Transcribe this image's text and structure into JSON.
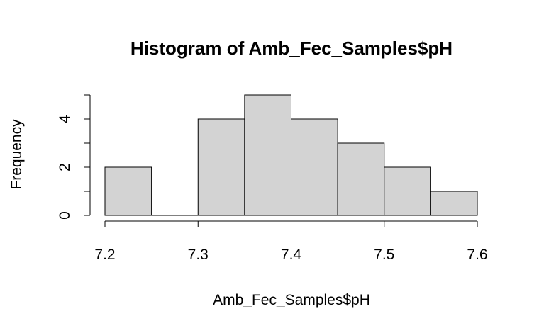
{
  "chart_data": {
    "type": "bar",
    "title": "Histogram of Amb_Fec_Samples$pH",
    "xlabel": "Amb_Fec_Samples$pH",
    "ylabel": "Frequency",
    "bins": [
      {
        "start": 7.2,
        "end": 7.25,
        "count": 2
      },
      {
        "start": 7.25,
        "end": 7.3,
        "count": 0
      },
      {
        "start": 7.3,
        "end": 7.35,
        "count": 4
      },
      {
        "start": 7.35,
        "end": 7.4,
        "count": 5
      },
      {
        "start": 7.4,
        "end": 7.45,
        "count": 4
      },
      {
        "start": 7.45,
        "end": 7.5,
        "count": 3
      },
      {
        "start": 7.5,
        "end": 7.55,
        "count": 2
      },
      {
        "start": 7.55,
        "end": 7.6,
        "count": 1
      }
    ],
    "xlim": [
      7.2,
      7.6
    ],
    "ylim": [
      0,
      5
    ],
    "x_ticks": [
      7.2,
      7.3,
      7.4,
      7.5,
      7.6
    ],
    "x_tick_labels": [
      "7.2",
      "7.3",
      "7.4",
      "7.5",
      "7.6"
    ],
    "y_ticks": [
      0,
      1,
      2,
      3,
      4,
      5
    ],
    "y_tick_labels": [
      "0",
      "2",
      "4"
    ],
    "bar_fill": "#d3d3d3",
    "bar_stroke": "#000000",
    "grid": false,
    "legend": "none"
  }
}
